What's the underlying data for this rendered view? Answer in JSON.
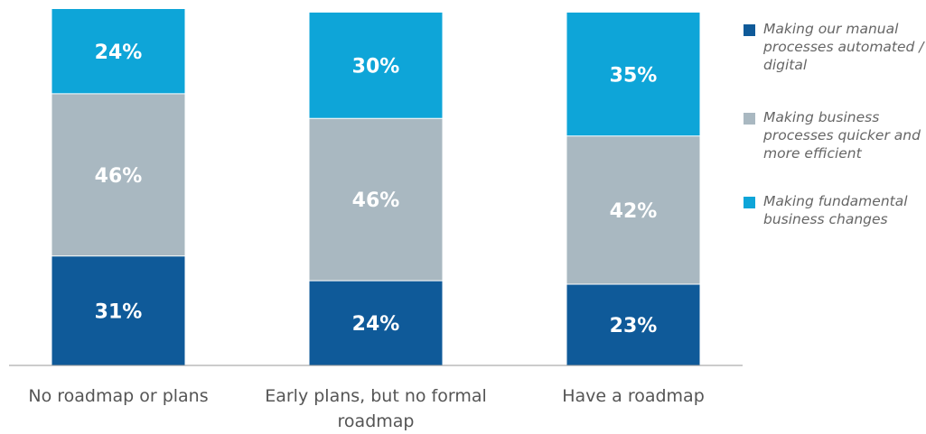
{
  "chart_data": {
    "type": "stacked_bar",
    "categories": [
      "No roadmap or plans",
      "Early plans, but no formal roadmap",
      "Have a roadmap"
    ],
    "series": [
      {
        "name": "Making our manual processes automated / digital",
        "color": "#0f5a99",
        "values": [
          31,
          24,
          23
        ],
        "value_labels": [
          "31%",
          "24%",
          "23%"
        ]
      },
      {
        "name": "Making business processes quicker and more efficient",
        "color": "#a9b8c1",
        "values": [
          46,
          46,
          42
        ],
        "value_labels": [
          "46%",
          "46%",
          "42%"
        ]
      },
      {
        "name": "Making fundamental business changes",
        "color": "#0ea5d8",
        "values": [
          24,
          30,
          35
        ],
        "value_labels": [
          "24%",
          "30%",
          "35%"
        ]
      }
    ],
    "legend": "right"
  }
}
